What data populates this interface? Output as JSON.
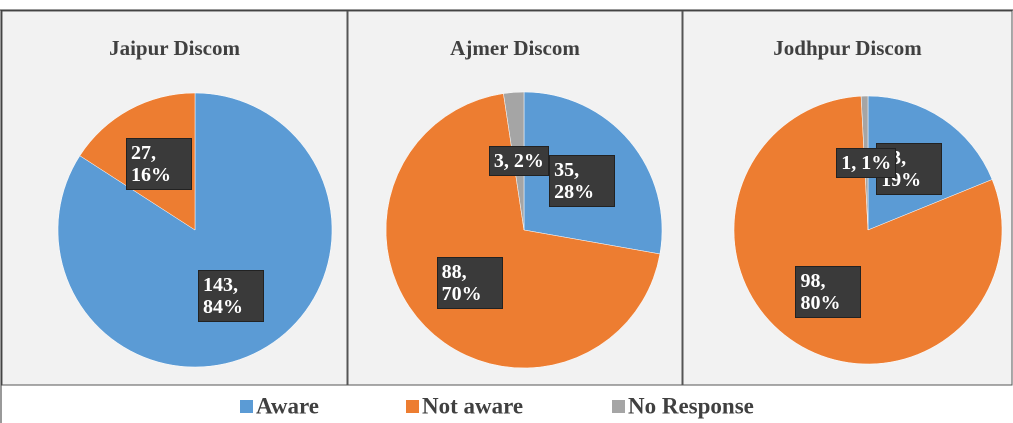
{
  "chart_data": [
    {
      "type": "pie",
      "title": "Jaipur Discom",
      "values": [
        143,
        27
      ],
      "value_labels": [
        "143, 84%",
        "27, 16%"
      ]
    },
    {
      "type": "pie",
      "title": "Ajmer Discom",
      "values": [
        35,
        88,
        3
      ],
      "value_labels": [
        "35, 28%",
        "88, 70%",
        "3, 2%"
      ]
    },
    {
      "type": "pie",
      "title": "Jodhpur Discom",
      "values": [
        23,
        98,
        1
      ],
      "value_labels": [
        "23, 19%",
        "98, 80%",
        "1, 1%"
      ]
    }
  ],
  "legend": {
    "categories": [
      "Aware",
      "Not aware",
      "No Response"
    ],
    "colors": [
      "#5b9bd5",
      "#ed7d31",
      "#a5a5a5"
    ]
  }
}
